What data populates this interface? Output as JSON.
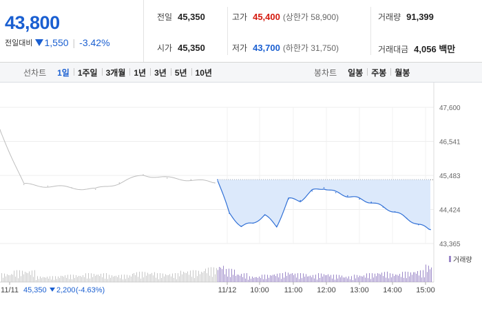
{
  "price": {
    "current": "43,800",
    "change_label": "전일대비",
    "change": "1,550",
    "change_pct": "-3.42%",
    "color_down": "#1a5fd1",
    "color_up": "#d4190d"
  },
  "stats": {
    "prev_close": {
      "label": "전일",
      "value": "45,350"
    },
    "open": {
      "label": "시가",
      "value": "45,350"
    },
    "high": {
      "label": "고가",
      "value": "45,400",
      "sub": "(상한가 58,900)"
    },
    "low": {
      "label": "저가",
      "value": "43,700",
      "sub": "(하한가 31,750)"
    },
    "volume": {
      "label": "거래량",
      "value": "91,399"
    },
    "amount": {
      "label": "거래대금",
      "value": "4,056 백만"
    }
  },
  "line_chart_menu": {
    "title": "선차트",
    "items": [
      "1일",
      "1주일",
      "3개월",
      "1년",
      "3년",
      "5년",
      "10년"
    ],
    "active": "1일"
  },
  "candle_chart_menu": {
    "title": "봉차트",
    "items": [
      "일봉",
      "주봉",
      "월봉"
    ]
  },
  "chart_data": {
    "type": "line",
    "y_ticks": [
      "47,600",
      "46,541",
      "45,483",
      "44,424",
      "43,365"
    ],
    "ylim": [
      43365,
      47600
    ],
    "prev_close": 45350,
    "x_ticks": [
      "11/11",
      "11/12",
      "10:00",
      "11:00",
      "12:00",
      "13:00",
      "14:00",
      "15:00"
    ],
    "volume_legend": "거래량",
    "prev_day_summary": {
      "date": "11/11",
      "close": "45,350",
      "change": "2,200",
      "change_pct": "(-4.63%)"
    },
    "series": [
      {
        "x": [
          "11/11 09:00",
          "11/11 09:30",
          "11/11 10:00",
          "11/11 11:00",
          "11/11 12:00",
          "11/11 13:00",
          "11/11 13:30",
          "11/11 14:00",
          "11/11 15:00",
          "11/11 15:30",
          "11/12 09:00",
          "11/12 09:15",
          "11/12 09:30",
          "11/12 09:45",
          "11/12 10:00",
          "11/12 10:15",
          "11/12 10:30",
          "11/12 10:45",
          "11/12 11:00",
          "11/12 11:15",
          "11/12 11:30",
          "11/12 12:00",
          "11/12 12:30",
          "11/12 13:00",
          "11/12 13:30",
          "11/12 14:00",
          "11/12 14:30",
          "11/12 15:00",
          "11/12 15:20"
        ],
        "values": [
          46900,
          45200,
          45150,
          45100,
          45050,
          45250,
          45500,
          45400,
          45350,
          45250,
          45350,
          44300,
          43900,
          44000,
          44250,
          43900,
          44750,
          44700,
          45000,
          45100,
          44950,
          44850,
          44750,
          44650,
          44500,
          44350,
          44150,
          43950,
          43800
        ]
      }
    ],
    "volume": [
      30,
      40,
      20,
      25,
      30,
      25,
      35,
      30,
      40,
      50,
      60,
      45,
      30,
      20,
      25,
      30,
      35,
      30,
      25,
      30,
      25,
      20,
      25,
      30,
      35,
      30,
      35,
      40,
      60
    ]
  }
}
